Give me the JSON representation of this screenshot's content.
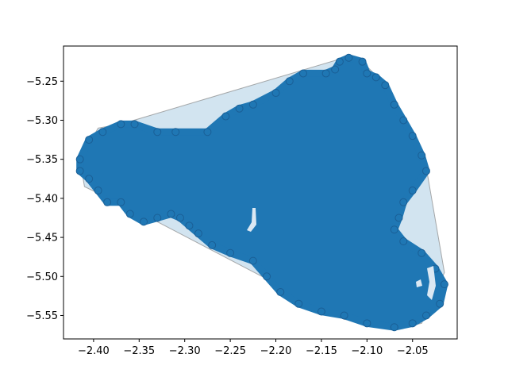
{
  "chart_data": {
    "type": "scatter",
    "title": "",
    "xlabel": "",
    "ylabel": "",
    "xlim": [
      -2.433,
      2.0
    ],
    "ylim": [
      -5.58,
      -5.205
    ],
    "x_ticks": [
      -2.4,
      -2.35,
      -2.3,
      -2.25,
      -2.2,
      -2.15,
      -2.1,
      -2.05
    ],
    "x_tick_labels": [
      "−2.40",
      "−2.35",
      "−2.30",
      "−2.25",
      "−2.20",
      "−2.15",
      "−2.10",
      "−2.05"
    ],
    "y_ticks": [
      -5.25,
      -5.3,
      -5.35,
      -5.4,
      -5.45,
      -5.5,
      -5.55
    ],
    "y_tick_labels": [
      "−5.25",
      "−5.30",
      "−5.35",
      "−5.40",
      "−5.45",
      "−5.50",
      "−5.55"
    ],
    "grid": false,
    "series": [
      {
        "kind": "convex-hull",
        "color": "#1f77b4",
        "points": [
          [
            -2.125,
            -5.22
          ],
          [
            -2.105,
            -5.225
          ],
          [
            -2.08,
            -5.255
          ],
          [
            -2.07,
            -5.28
          ],
          [
            -2.035,
            -5.36
          ],
          [
            -2.015,
            -5.495
          ],
          [
            -2.04,
            -5.56
          ],
          [
            -2.06,
            -5.565
          ],
          [
            -2.125,
            -5.555
          ],
          [
            -2.33,
            -5.43
          ],
          [
            -2.41,
            -5.385
          ],
          [
            -2.415,
            -5.35
          ],
          [
            -2.395,
            -5.31
          ],
          [
            -2.37,
            -5.305
          ]
        ]
      },
      {
        "kind": "scatter-region",
        "color": "#1f77b4",
        "outline": [
          [
            -2.415,
            -5.35
          ],
          [
            -2.405,
            -5.325
          ],
          [
            -2.39,
            -5.315
          ],
          [
            -2.37,
            -5.305
          ],
          [
            -2.355,
            -5.305
          ],
          [
            -2.33,
            -5.315
          ],
          [
            -2.31,
            -5.315
          ],
          [
            -2.275,
            -5.315
          ],
          [
            -2.255,
            -5.295
          ],
          [
            -2.24,
            -5.285
          ],
          [
            -2.225,
            -5.28
          ],
          [
            -2.2,
            -5.265
          ],
          [
            -2.185,
            -5.25
          ],
          [
            -2.17,
            -5.24
          ],
          [
            -2.145,
            -5.24
          ],
          [
            -2.135,
            -5.235
          ],
          [
            -2.13,
            -5.225
          ],
          [
            -2.12,
            -5.22
          ],
          [
            -2.105,
            -5.225
          ],
          [
            -2.1,
            -5.24
          ],
          [
            -2.09,
            -5.245
          ],
          [
            -2.08,
            -5.255
          ],
          [
            -2.07,
            -5.28
          ],
          [
            -2.06,
            -5.3
          ],
          [
            -2.05,
            -5.32
          ],
          [
            -2.04,
            -5.345
          ],
          [
            -2.035,
            -5.365
          ],
          [
            -2.05,
            -5.39
          ],
          [
            -2.06,
            -5.405
          ],
          [
            -2.065,
            -5.425
          ],
          [
            -2.07,
            -5.44
          ],
          [
            -2.06,
            -5.455
          ],
          [
            -2.04,
            -5.47
          ],
          [
            -2.025,
            -5.49
          ],
          [
            -2.015,
            -5.51
          ],
          [
            -2.02,
            -5.535
          ],
          [
            -2.035,
            -5.55
          ],
          [
            -2.05,
            -5.56
          ],
          [
            -2.07,
            -5.565
          ],
          [
            -2.1,
            -5.56
          ],
          [
            -2.125,
            -5.55
          ],
          [
            -2.15,
            -5.545
          ],
          [
            -2.175,
            -5.535
          ],
          [
            -2.195,
            -5.52
          ],
          [
            -2.21,
            -5.5
          ],
          [
            -2.225,
            -5.48
          ],
          [
            -2.25,
            -5.47
          ],
          [
            -2.27,
            -5.46
          ],
          [
            -2.285,
            -5.445
          ],
          [
            -2.295,
            -5.435
          ],
          [
            -2.305,
            -5.425
          ],
          [
            -2.315,
            -5.42
          ],
          [
            -2.33,
            -5.425
          ],
          [
            -2.345,
            -5.43
          ],
          [
            -2.36,
            -5.42
          ],
          [
            -2.37,
            -5.405
          ],
          [
            -2.385,
            -5.405
          ],
          [
            -2.395,
            -5.39
          ],
          [
            -2.405,
            -5.375
          ],
          [
            -2.415,
            -5.365
          ]
        ]
      }
    ]
  }
}
